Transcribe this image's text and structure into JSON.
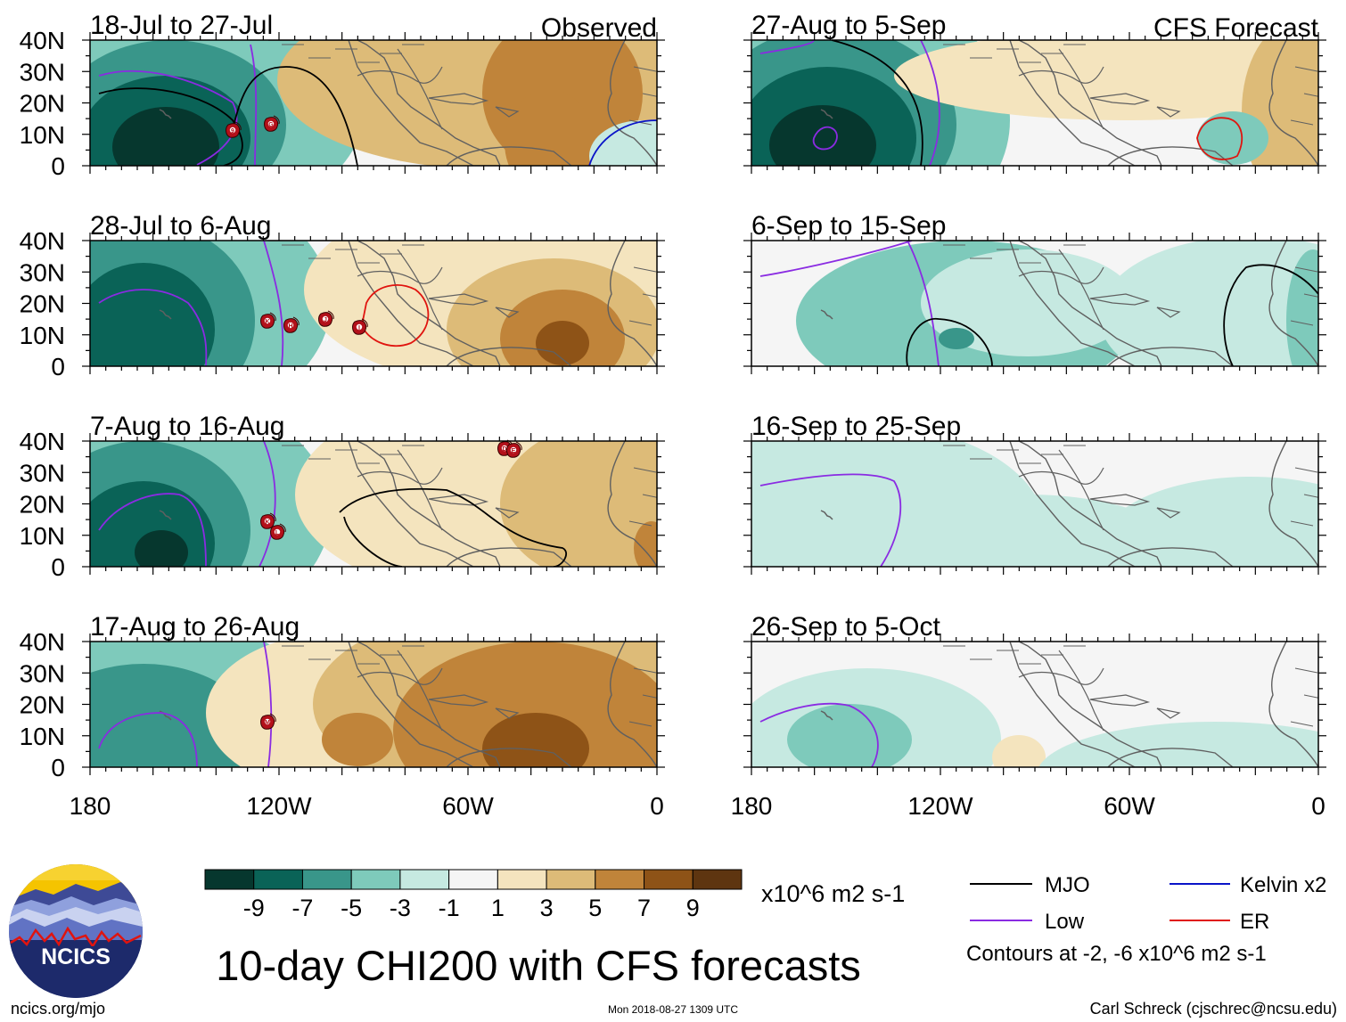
{
  "chart_data": {
    "type": "contour-map",
    "title": "10-day CHI200 with CFS forecasts",
    "units": "x10^6 m2 s-1",
    "map_extent": {
      "lon_min": -180,
      "lon_max": 0,
      "lat_min": 0,
      "lat_max": 40
    },
    "y_ticks": [
      "40N",
      "30N",
      "20N",
      "10N",
      "0"
    ],
    "x_ticks": [
      "180",
      "120W",
      "60W",
      "0"
    ],
    "colorbar": {
      "labels": [
        "-9",
        "-7",
        "-5",
        "-3",
        "-1",
        "1",
        "3",
        "5",
        "7",
        "9"
      ],
      "colors": [
        "#06372e",
        "#0a6357",
        "#39968a",
        "#7ecabb",
        "#c6e9e1",
        "#f5f5f5",
        "#f4e4be",
        "#ddbb78",
        "#c0843a",
        "#8e5317",
        "#5e3510"
      ]
    },
    "legend": {
      "items": [
        {
          "name": "MJO",
          "color": "#000000"
        },
        {
          "name": "Kelvin x2",
          "color": "#0a14c8"
        },
        {
          "name": "Low",
          "color": "#8a2be2"
        },
        {
          "name": "ER",
          "color": "#e0140f"
        }
      ],
      "note": "Contours at -2, -6 x10^6 m2 s-1"
    },
    "panels": [
      {
        "period": "18-Jul to 27-Jul",
        "label": "Observed",
        "storms": [
          "9",
          "G"
        ]
      },
      {
        "period": "27-Aug to 5-Sep",
        "label": "CFS Forecast",
        "storms": []
      },
      {
        "period": "28-Jul to 6-Aug",
        "label": "",
        "storms": [
          "K",
          "H",
          "J",
          "I"
        ]
      },
      {
        "period": "6-Sep to 15-Sep",
        "label": "",
        "storms": []
      },
      {
        "period": "7-Aug to 16-Aug",
        "label": "",
        "storms": [
          "D",
          "E",
          "K",
          "L"
        ]
      },
      {
        "period": "16-Sep to 25-Sep",
        "label": "",
        "storms": []
      },
      {
        "period": "17-Aug to 26-Aug",
        "label": "",
        "storms": [
          "M"
        ]
      },
      {
        "period": "26-Sep to 5-Oct",
        "label": "",
        "storms": []
      }
    ]
  },
  "logo": {
    "text": "NCICS"
  },
  "footer": {
    "left": "ncics.org/mjo",
    "center": "Mon 2018-08-27 1309 UTC",
    "right": "Carl Schreck (cjschrec@ncsu.edu)"
  }
}
